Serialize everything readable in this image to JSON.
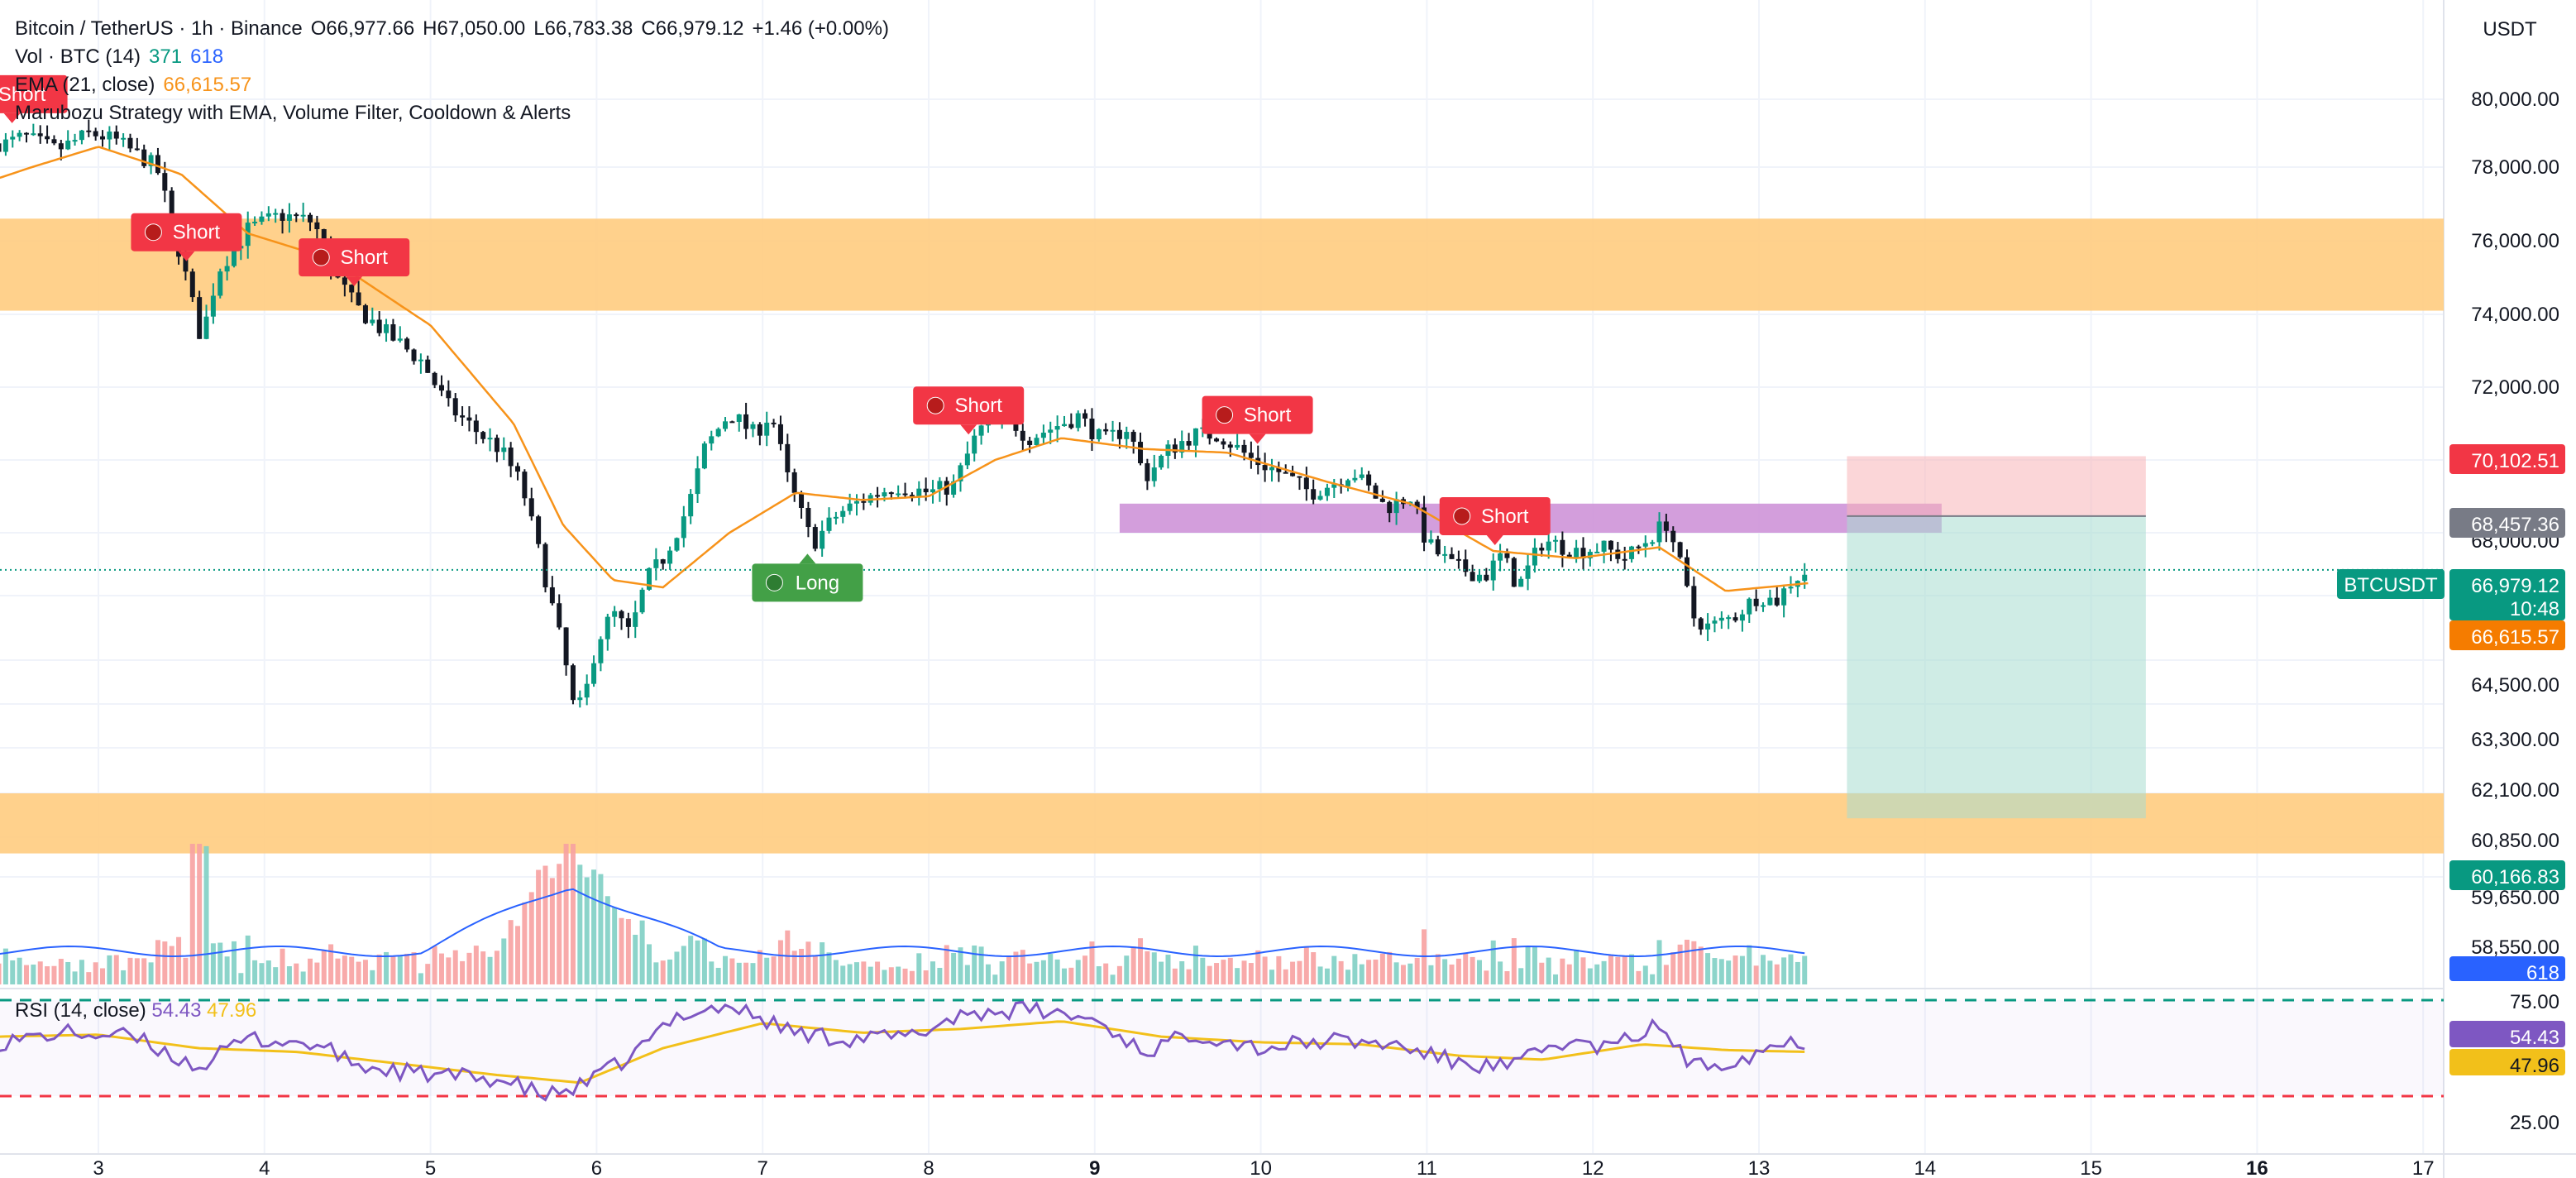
{
  "header": {
    "symbol": "Bitcoin / TetherUS · 1h · Binance",
    "open": "O66,977.66",
    "high": "H67,050.00",
    "low": "L66,783.38",
    "close": "C66,979.12",
    "change": "+1.46 (+0.00%)",
    "volume_label": "Vol · BTC (14)",
    "volume_value_1": "371",
    "volume_value_2": "618",
    "ema_label": "EMA (21, close)",
    "ema_value": "66,615.57",
    "strategy_label": "Marubozu Strategy with EMA, Volume Filter, Cooldown & Alerts",
    "currency": "USDT"
  },
  "rsi": {
    "label": "RSI (14, close)",
    "value": "54.43",
    "ma_value": "47.96",
    "upper": 75,
    "lower": 25,
    "upper_label": "75.00",
    "lower_label": "25.00"
  },
  "colors": {
    "up": "#089981",
    "down": "#131722",
    "down_vol": "#f7a1a1",
    "up_vol": "#7fcfc4",
    "ema": "#f7931a",
    "zone": "#ffcc80",
    "purple_zone": "#ce93d8",
    "signal_short": "#f23645",
    "signal_long": "#43a047",
    "rsi": "#7e57c2",
    "rsi_ma": "#f2c01a"
  },
  "price_axis": {
    "ticks": [
      "80,000.00",
      "78,000.00",
      "76,000.00",
      "74,000.00",
      "72,000.00",
      "70,102.51",
      "68,457.36",
      "68,000.00",
      "66,979.12",
      "66,615.57",
      "64,500.00",
      "63,300.00",
      "62,100.00",
      "60,850.00",
      "60,166.83",
      "59,650.00",
      "58,550.00"
    ],
    "current_label": "BTCUSDT",
    "current_price": "66,979.12",
    "countdown": "10:48",
    "ema_price": "66,615.57",
    "target_price": "60,166.83",
    "stop_price": "70,102.51",
    "entry_price": "68,457.36",
    "volume_badge": "618"
  },
  "time_axis": {
    "labels": [
      "3",
      "4",
      "5",
      "6",
      "7",
      "8",
      "9",
      "10",
      "11",
      "12",
      "13",
      "14",
      "15",
      "16",
      "17"
    ],
    "bold": [
      "9",
      "16"
    ]
  },
  "signals": [
    {
      "label": "Short",
      "type": "short",
      "day": 2.48
    },
    {
      "label": "Short",
      "type": "short",
      "day": 3.53
    },
    {
      "label": "Short",
      "type": "short",
      "day": 4.54
    },
    {
      "label": "Long",
      "type": "long",
      "day": 7.27
    },
    {
      "label": "Short",
      "type": "short",
      "day": 8.24
    },
    {
      "label": "Short",
      "type": "short",
      "day": 9.98
    },
    {
      "label": "Short",
      "type": "short",
      "day": 11.41
    }
  ],
  "chart_data": {
    "type": "candlestick",
    "title": "Bitcoin / TetherUS · 1h · Binance",
    "x_unit": "day of month (hourly bars)",
    "x_range": [
      2.4,
      17
    ],
    "y_range_label": "USDT",
    "anchors": [
      {
        "day": 2.45,
        "price": 78700
      },
      {
        "day": 2.55,
        "price": 78900
      },
      {
        "day": 2.75,
        "price": 78500
      },
      {
        "day": 2.95,
        "price": 79000
      },
      {
        "day": 3.1,
        "price": 78800
      },
      {
        "day": 3.35,
        "price": 78000
      },
      {
        "day": 3.5,
        "price": 75500
      },
      {
        "day": 3.62,
        "price": 73300
      },
      {
        "day": 3.72,
        "price": 75200
      },
      {
        "day": 3.9,
        "price": 76300
      },
      {
        "day": 4.1,
        "price": 76700
      },
      {
        "day": 4.3,
        "price": 76500
      },
      {
        "day": 4.4,
        "price": 75200
      },
      {
        "day": 4.55,
        "price": 74200
      },
      {
        "day": 4.7,
        "price": 73600
      },
      {
        "day": 4.95,
        "price": 72700
      },
      {
        "day": 5.1,
        "price": 71500
      },
      {
        "day": 5.3,
        "price": 70700
      },
      {
        "day": 5.42,
        "price": 70300
      },
      {
        "day": 5.55,
        "price": 69300
      },
      {
        "day": 5.7,
        "price": 66600
      },
      {
        "day": 5.8,
        "price": 64700
      },
      {
        "day": 5.87,
        "price": 63000
      },
      {
        "day": 5.93,
        "price": 63500
      },
      {
        "day": 6.0,
        "price": 65000
      },
      {
        "day": 6.1,
        "price": 65800
      },
      {
        "day": 6.2,
        "price": 65200
      },
      {
        "day": 6.3,
        "price": 66700
      },
      {
        "day": 6.4,
        "price": 67300
      },
      {
        "day": 6.55,
        "price": 68700
      },
      {
        "day": 6.65,
        "price": 70300
      },
      {
        "day": 6.8,
        "price": 71300
      },
      {
        "day": 6.95,
        "price": 70700
      },
      {
        "day": 7.05,
        "price": 71300
      },
      {
        "day": 7.15,
        "price": 69500
      },
      {
        "day": 7.3,
        "price": 67700
      },
      {
        "day": 7.45,
        "price": 68500
      },
      {
        "day": 7.6,
        "price": 68900
      },
      {
        "day": 7.8,
        "price": 69300
      },
      {
        "day": 8.0,
        "price": 69100
      },
      {
        "day": 8.15,
        "price": 69300
      },
      {
        "day": 8.3,
        "price": 70800
      },
      {
        "day": 8.45,
        "price": 71300
      },
      {
        "day": 8.6,
        "price": 70600
      },
      {
        "day": 8.75,
        "price": 70900
      },
      {
        "day": 8.9,
        "price": 71200
      },
      {
        "day": 9.05,
        "price": 70500
      },
      {
        "day": 9.2,
        "price": 70900
      },
      {
        "day": 9.3,
        "price": 69500
      },
      {
        "day": 9.45,
        "price": 70300
      },
      {
        "day": 9.6,
        "price": 70700
      },
      {
        "day": 9.75,
        "price": 70700
      },
      {
        "day": 9.95,
        "price": 70000
      },
      {
        "day": 10.1,
        "price": 69700
      },
      {
        "day": 10.3,
        "price": 69100
      },
      {
        "day": 10.45,
        "price": 69400
      },
      {
        "day": 10.55,
        "price": 69700
      },
      {
        "day": 10.75,
        "price": 68700
      },
      {
        "day": 10.9,
        "price": 69000
      },
      {
        "day": 11.0,
        "price": 67700
      },
      {
        "day": 11.15,
        "price": 67100
      },
      {
        "day": 11.35,
        "price": 66800
      },
      {
        "day": 11.45,
        "price": 67400
      },
      {
        "day": 11.55,
        "price": 66500
      },
      {
        "day": 11.7,
        "price": 67800
      },
      {
        "day": 11.9,
        "price": 67500
      },
      {
        "day": 12.05,
        "price": 67600
      },
      {
        "day": 12.2,
        "price": 67300
      },
      {
        "day": 12.35,
        "price": 67900
      },
      {
        "day": 12.45,
        "price": 68300
      },
      {
        "day": 12.55,
        "price": 66700
      },
      {
        "day": 12.6,
        "price": 65700
      },
      {
        "day": 12.7,
        "price": 65400
      },
      {
        "day": 12.85,
        "price": 65700
      },
      {
        "day": 13.0,
        "price": 66300
      },
      {
        "day": 13.1,
        "price": 66100
      },
      {
        "day": 13.2,
        "price": 66700
      },
      {
        "day": 13.3,
        "price": 66980
      }
    ],
    "ema_anchors": [
      {
        "day": 2.4,
        "price": 77700
      },
      {
        "day": 3.0,
        "price": 78600
      },
      {
        "day": 3.5,
        "price": 77800
      },
      {
        "day": 3.9,
        "price": 76200
      },
      {
        "day": 4.4,
        "price": 75500
      },
      {
        "day": 5.0,
        "price": 73700
      },
      {
        "day": 5.5,
        "price": 71000
      },
      {
        "day": 5.8,
        "price": 68200
      },
      {
        "day": 6.1,
        "price": 66700
      },
      {
        "day": 6.4,
        "price": 66500
      },
      {
        "day": 6.8,
        "price": 68000
      },
      {
        "day": 7.2,
        "price": 69100
      },
      {
        "day": 7.6,
        "price": 68900
      },
      {
        "day": 8.0,
        "price": 69000
      },
      {
        "day": 8.4,
        "price": 70000
      },
      {
        "day": 8.8,
        "price": 70600
      },
      {
        "day": 9.3,
        "price": 70300
      },
      {
        "day": 9.8,
        "price": 70200
      },
      {
        "day": 10.4,
        "price": 69400
      },
      {
        "day": 10.9,
        "price": 68800
      },
      {
        "day": 11.4,
        "price": 67500
      },
      {
        "day": 11.9,
        "price": 67300
      },
      {
        "day": 12.4,
        "price": 67600
      },
      {
        "day": 12.8,
        "price": 66400
      },
      {
        "day": 13.3,
        "price": 66615
      }
    ],
    "ema_period": 21,
    "zones": [
      {
        "name": "resistance-zone",
        "from_day": 2.4,
        "to_day": 17,
        "low": 74100,
        "high": 76600
      },
      {
        "name": "support-zone",
        "from_day": 2.4,
        "to_day": 17,
        "low": 59200,
        "high": 60850
      },
      {
        "name": "purple-zone",
        "from_day": 9.15,
        "to_day": 14.1,
        "low": 68000,
        "high": 68800
      }
    ],
    "position": {
      "type": "short",
      "from_day": 13.53,
      "to_day": 15.33,
      "entry": 68457.36,
      "stop": 70102.51,
      "target": 60166.83
    },
    "volume_peak_day": 5.85,
    "rsi_anchors": [
      {
        "day": 2.4,
        "v": 53
      },
      {
        "day": 2.8,
        "v": 58
      },
      {
        "day": 3.2,
        "v": 56
      },
      {
        "day": 3.6,
        "v": 40
      },
      {
        "day": 3.9,
        "v": 55
      },
      {
        "day": 4.3,
        "v": 52
      },
      {
        "day": 4.6,
        "v": 40
      },
      {
        "day": 5.0,
        "v": 36
      },
      {
        "day": 5.4,
        "v": 34
      },
      {
        "day": 5.7,
        "v": 25
      },
      {
        "day": 5.9,
        "v": 30
      },
      {
        "day": 6.2,
        "v": 45
      },
      {
        "day": 6.5,
        "v": 68
      },
      {
        "day": 6.8,
        "v": 72
      },
      {
        "day": 7.2,
        "v": 58
      },
      {
        "day": 7.5,
        "v": 55
      },
      {
        "day": 7.9,
        "v": 56
      },
      {
        "day": 8.2,
        "v": 68
      },
      {
        "day": 8.6,
        "v": 70
      },
      {
        "day": 9.0,
        "v": 65
      },
      {
        "day": 9.3,
        "v": 48
      },
      {
        "day": 9.6,
        "v": 58
      },
      {
        "day": 10.0,
        "v": 50
      },
      {
        "day": 10.4,
        "v": 54
      },
      {
        "day": 10.8,
        "v": 52
      },
      {
        "day": 11.2,
        "v": 42
      },
      {
        "day": 11.5,
        "v": 40
      },
      {
        "day": 11.8,
        "v": 53
      },
      {
        "day": 12.1,
        "v": 50
      },
      {
        "day": 12.4,
        "v": 62
      },
      {
        "day": 12.6,
        "v": 40
      },
      {
        "day": 12.9,
        "v": 45
      },
      {
        "day": 13.1,
        "v": 52
      },
      {
        "day": 13.3,
        "v": 54
      }
    ],
    "rsi_ma_anchors": [
      {
        "day": 2.4,
        "v": 56
      },
      {
        "day": 3.0,
        "v": 57
      },
      {
        "day": 3.6,
        "v": 50
      },
      {
        "day": 4.2,
        "v": 48
      },
      {
        "day": 4.8,
        "v": 42
      },
      {
        "day": 5.4,
        "v": 36
      },
      {
        "day": 5.9,
        "v": 32
      },
      {
        "day": 6.4,
        "v": 50
      },
      {
        "day": 7.0,
        "v": 63
      },
      {
        "day": 7.6,
        "v": 58
      },
      {
        "day": 8.2,
        "v": 60
      },
      {
        "day": 8.8,
        "v": 64
      },
      {
        "day": 9.4,
        "v": 56
      },
      {
        "day": 10.0,
        "v": 53
      },
      {
        "day": 10.6,
        "v": 52
      },
      {
        "day": 11.2,
        "v": 46
      },
      {
        "day": 11.7,
        "v": 44
      },
      {
        "day": 12.3,
        "v": 52
      },
      {
        "day": 12.8,
        "v": 49
      },
      {
        "day": 13.3,
        "v": 48
      }
    ]
  }
}
